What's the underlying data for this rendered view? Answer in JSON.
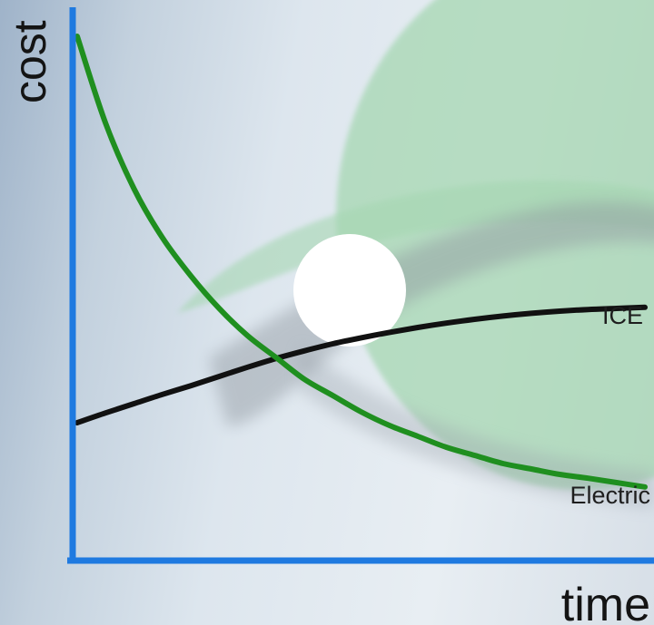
{
  "chart_data": {
    "type": "line",
    "xlabel": "time",
    "ylabel": "cost",
    "xlim": [
      0,
      10
    ],
    "ylim": [
      0,
      10
    ],
    "grid": false,
    "legend": "inline labels at right end of lines",
    "series": [
      {
        "name": "Electric",
        "color": "#1f8f1f",
        "x": [
          0,
          0.5,
          1,
          1.5,
          2,
          2.5,
          3,
          3.5,
          4,
          4.5,
          5,
          5.5,
          6,
          6.5,
          7,
          7.5,
          8,
          8.5,
          9,
          9.5,
          10
        ],
        "y": [
          9.5,
          7.9,
          6.7,
          5.8,
          5.1,
          4.5,
          4.0,
          3.6,
          3.2,
          2.9,
          2.6,
          2.35,
          2.15,
          1.95,
          1.8,
          1.65,
          1.55,
          1.45,
          1.38,
          1.3,
          1.22
        ]
      },
      {
        "name": "ICE",
        "color": "#111111",
        "x": [
          0,
          0.5,
          1,
          1.5,
          2,
          2.5,
          3,
          3.5,
          4,
          4.5,
          5,
          5.5,
          6,
          6.5,
          7,
          7.5,
          8,
          8.5,
          9,
          9.5,
          10
        ],
        "y": [
          2.4,
          2.58,
          2.75,
          2.92,
          3.08,
          3.25,
          3.42,
          3.58,
          3.72,
          3.85,
          3.96,
          4.06,
          4.15,
          4.23,
          4.3,
          4.36,
          4.41,
          4.45,
          4.48,
          4.5,
          4.52
        ]
      }
    ]
  },
  "colors": {
    "axis": "#1f7ae0",
    "backdrop_green": "#a8d8b4",
    "backdrop_gray": "#8e969e"
  }
}
